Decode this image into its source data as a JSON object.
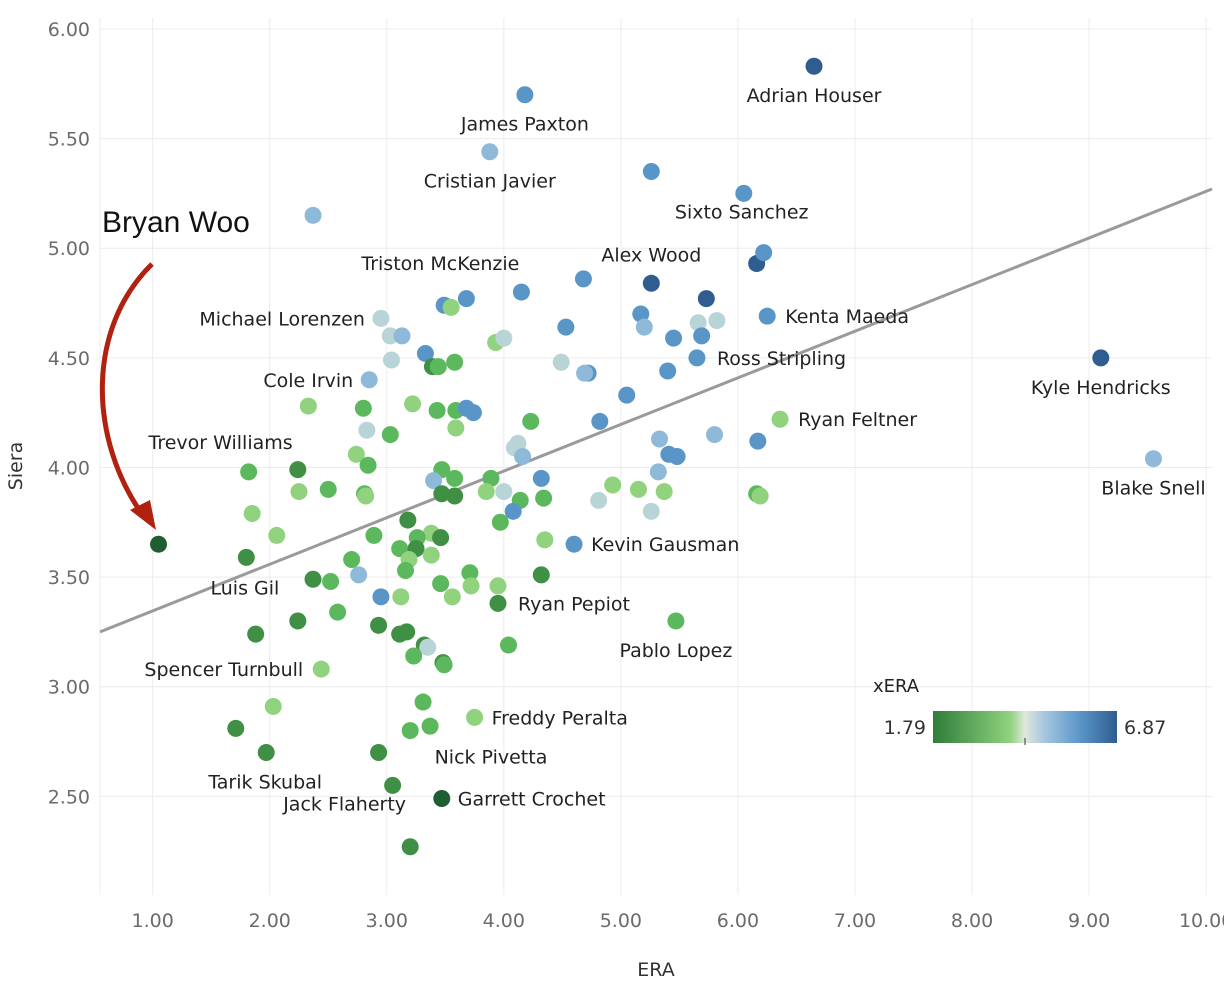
{
  "chart_data": {
    "type": "scatter",
    "xlabel": "ERA",
    "ylabel": "Siera",
    "xlim": [
      0.55,
      10.05
    ],
    "ylim": [
      2.05,
      6.05
    ],
    "x_ticks": [
      "1.00",
      "2.00",
      "3.00",
      "4.00",
      "5.00",
      "6.00",
      "7.00",
      "8.00",
      "9.00",
      "10.00"
    ],
    "y_ticks": [
      "2.50",
      "3.00",
      "3.50",
      "4.00",
      "4.50",
      "5.00",
      "5.50",
      "6.00"
    ],
    "grid": true,
    "trend_line": {
      "x": [
        0.55,
        10.05
      ],
      "y": [
        3.25,
        5.27
      ],
      "color": "#9a9a9a"
    },
    "callout": {
      "text": "Bryan Woo",
      "arrow_color": "#b0220f",
      "target": [
        1.05,
        3.65
      ]
    },
    "color_legend": {
      "title": "xERA",
      "min_label": "1.79",
      "max_label": "6.87",
      "placement": "bottom-right"
    },
    "colors": {
      "dark_green": "#2e7d3a",
      "green": "#5cb85c",
      "light_green": "#90d27e",
      "pale": "#b9d4d6",
      "light_blue": "#8fb9d8",
      "blue": "#5a95c8",
      "dark_blue": "#2f5d8f"
    },
    "labeled_points": [
      {
        "name": "Adrian Houser",
        "x": 6.65,
        "y": 5.83,
        "xera": 5.9
      },
      {
        "name": "James Paxton",
        "x": 4.18,
        "y": 5.7,
        "xera": 5.5
      },
      {
        "name": "Cristian Javier",
        "x": 3.88,
        "y": 5.44,
        "xera": 4.5
      },
      {
        "name": "Sixto Sanchez",
        "x": 6.22,
        "y": 4.98,
        "xera": 5.6
      },
      {
        "name": "Alex Wood",
        "x": 5.26,
        "y": 4.84,
        "xera": 6.3
      },
      {
        "name": "Triston McKenzie",
        "x": 4.15,
        "y": 4.8,
        "xera": 5.3
      },
      {
        "name": "Kenta Maeda",
        "x": 6.25,
        "y": 4.69,
        "xera": 5.1
      },
      {
        "name": "Michael Lorenzen",
        "x": 2.95,
        "y": 4.68,
        "xera": 3.9
      },
      {
        "name": "Ross Stripling",
        "x": 5.65,
        "y": 4.5,
        "xera": 5.6
      },
      {
        "name": "Kyle Hendricks",
        "x": 9.1,
        "y": 4.5,
        "xera": 6.0
      },
      {
        "name": "Cole Irvin",
        "x": 2.85,
        "y": 4.4,
        "xera": 4.7
      },
      {
        "name": "Ryan Feltner",
        "x": 6.36,
        "y": 4.22,
        "xera": 3.4
      },
      {
        "name": "Trevor Williams",
        "x": 1.82,
        "y": 3.98,
        "xera": 2.8
      },
      {
        "name": "Blake Snell",
        "x": 9.55,
        "y": 4.04,
        "xera": 4.9
      },
      {
        "name": "Kevin Gausman",
        "x": 4.6,
        "y": 3.65,
        "xera": 5.5
      },
      {
        "name": "Bryan Woo",
        "x": 1.05,
        "y": 3.65,
        "xera": 1.79
      },
      {
        "name": "Luis Gil",
        "x": 1.8,
        "y": 3.59,
        "xera": 2.5
      },
      {
        "name": "Ryan Pepiot",
        "x": 3.95,
        "y": 3.38,
        "xera": 2.6
      },
      {
        "name": "Pablo Lopez",
        "x": 5.47,
        "y": 3.3,
        "xera": 2.8
      },
      {
        "name": "Spencer Turnbull",
        "x": 2.44,
        "y": 3.08,
        "xera": 3.5
      },
      {
        "name": "Freddy Peralta",
        "x": 3.75,
        "y": 2.86,
        "xera": 3.4
      },
      {
        "name": "Tarik Skubal",
        "x": 1.97,
        "y": 2.7,
        "xera": 2.4
      },
      {
        "name": "Nick Pivetta",
        "x": 2.93,
        "y": 2.7,
        "xera": 2.4
      },
      {
        "name": "Jack Flaherty",
        "x": 3.05,
        "y": 2.55,
        "xera": 2.5
      },
      {
        "name": "Garrett Crochet",
        "x": 3.47,
        "y": 2.49,
        "xera": 2.0
      }
    ],
    "points": [
      {
        "x": 2.37,
        "y": 5.15,
        "xera": 4.5
      },
      {
        "x": 5.26,
        "y": 5.35,
        "xera": 5.4
      },
      {
        "x": 6.05,
        "y": 5.25,
        "xera": 5.2
      },
      {
        "x": 6.16,
        "y": 4.93,
        "xera": 6.6
      },
      {
        "x": 5.73,
        "y": 4.77,
        "xera": 5.9
      },
      {
        "x": 4.68,
        "y": 4.86,
        "xera": 5.2
      },
      {
        "x": 3.49,
        "y": 4.74,
        "xera": 5.3
      },
      {
        "x": 3.68,
        "y": 4.77,
        "xera": 5.2
      },
      {
        "x": 3.55,
        "y": 4.73,
        "xera": 3.4
      },
      {
        "x": 3.03,
        "y": 4.6,
        "xera": 4.3
      },
      {
        "x": 3.13,
        "y": 4.6,
        "xera": 4.8
      },
      {
        "x": 3.93,
        "y": 4.57,
        "xera": 3.5
      },
      {
        "x": 4.0,
        "y": 4.59,
        "xera": 3.9
      },
      {
        "x": 4.53,
        "y": 4.64,
        "xera": 5.3
      },
      {
        "x": 5.17,
        "y": 4.7,
        "xera": 5.2
      },
      {
        "x": 5.2,
        "y": 4.64,
        "xera": 4.9
      },
      {
        "x": 5.45,
        "y": 4.59,
        "xera": 5.2
      },
      {
        "x": 5.66,
        "y": 4.66,
        "xera": 4.0
      },
      {
        "x": 5.82,
        "y": 4.67,
        "xera": 3.9
      },
      {
        "x": 5.69,
        "y": 4.6,
        "xera": 5.2
      },
      {
        "x": 3.04,
        "y": 4.49,
        "xera": 4.2
      },
      {
        "x": 3.33,
        "y": 4.52,
        "xera": 5.2
      },
      {
        "x": 3.39,
        "y": 4.46,
        "xera": 2.4
      },
      {
        "x": 3.44,
        "y": 4.46,
        "xera": 2.9
      },
      {
        "x": 3.58,
        "y": 4.48,
        "xera": 3.1
      },
      {
        "x": 4.49,
        "y": 4.48,
        "xera": 4.0
      },
      {
        "x": 4.72,
        "y": 4.43,
        "xera": 5.5
      },
      {
        "x": 4.69,
        "y": 4.43,
        "xera": 4.8
      },
      {
        "x": 5.4,
        "y": 4.44,
        "xera": 5.6
      },
      {
        "x": 5.05,
        "y": 4.33,
        "xera": 5.1
      },
      {
        "x": 2.33,
        "y": 4.28,
        "xera": 3.4
      },
      {
        "x": 2.8,
        "y": 4.27,
        "xera": 2.8
      },
      {
        "x": 3.22,
        "y": 4.29,
        "xera": 3.6
      },
      {
        "x": 3.43,
        "y": 4.26,
        "xera": 2.9
      },
      {
        "x": 3.59,
        "y": 4.26,
        "xera": 3.0
      },
      {
        "x": 3.68,
        "y": 4.27,
        "xera": 5.3
      },
      {
        "x": 3.74,
        "y": 4.25,
        "xera": 5.3
      },
      {
        "x": 4.23,
        "y": 4.21,
        "xera": 3.1
      },
      {
        "x": 4.82,
        "y": 4.21,
        "xera": 5.0
      },
      {
        "x": 3.59,
        "y": 4.18,
        "xera": 3.3
      },
      {
        "x": 2.83,
        "y": 4.17,
        "xera": 4.2
      },
      {
        "x": 3.03,
        "y": 4.15,
        "xera": 3.0
      },
      {
        "x": 5.33,
        "y": 4.13,
        "xera": 4.9
      },
      {
        "x": 5.8,
        "y": 4.15,
        "xera": 4.4
      },
      {
        "x": 6.17,
        "y": 4.12,
        "xera": 5.6
      },
      {
        "x": 4.09,
        "y": 4.09,
        "xera": 4.3
      },
      {
        "x": 4.12,
        "y": 4.11,
        "xera": 4.0
      },
      {
        "x": 4.16,
        "y": 4.05,
        "xera": 4.8
      },
      {
        "x": 5.41,
        "y": 4.06,
        "xera": 5.5
      },
      {
        "x": 5.48,
        "y": 4.05,
        "xera": 5.7
      },
      {
        "x": 2.74,
        "y": 4.06,
        "xera": 3.6
      },
      {
        "x": 2.84,
        "y": 4.01,
        "xera": 3.0
      },
      {
        "x": 2.24,
        "y": 3.99,
        "xera": 2.6
      },
      {
        "x": 3.47,
        "y": 3.99,
        "xera": 2.8
      },
      {
        "x": 5.32,
        "y": 3.98,
        "xera": 4.5
      },
      {
        "x": 3.4,
        "y": 3.94,
        "xera": 4.4
      },
      {
        "x": 3.58,
        "y": 3.95,
        "xera": 3.0
      },
      {
        "x": 3.89,
        "y": 3.95,
        "xera": 3.1
      },
      {
        "x": 4.32,
        "y": 3.95,
        "xera": 5.6
      },
      {
        "x": 2.25,
        "y": 3.89,
        "xera": 3.3
      },
      {
        "x": 2.5,
        "y": 3.9,
        "xera": 2.8
      },
      {
        "x": 2.81,
        "y": 3.88,
        "xera": 3.1
      },
      {
        "x": 2.82,
        "y": 3.87,
        "xera": 3.7
      },
      {
        "x": 3.47,
        "y": 3.88,
        "xera": 2.6
      },
      {
        "x": 3.58,
        "y": 3.87,
        "xera": 2.5
      },
      {
        "x": 3.85,
        "y": 3.89,
        "xera": 3.6
      },
      {
        "x": 4.0,
        "y": 3.89,
        "xera": 4.1
      },
      {
        "x": 4.14,
        "y": 3.85,
        "xera": 3.0
      },
      {
        "x": 4.34,
        "y": 3.86,
        "xera": 2.9
      },
      {
        "x": 4.81,
        "y": 3.85,
        "xera": 3.8
      },
      {
        "x": 4.93,
        "y": 3.92,
        "xera": 3.5
      },
      {
        "x": 5.15,
        "y": 3.9,
        "xera": 3.6
      },
      {
        "x": 5.37,
        "y": 3.89,
        "xera": 3.4
      },
      {
        "x": 6.16,
        "y": 3.88,
        "xera": 3.1
      },
      {
        "x": 6.19,
        "y": 3.87,
        "xera": 3.6
      },
      {
        "x": 1.85,
        "y": 3.79,
        "xera": 3.3
      },
      {
        "x": 4.08,
        "y": 3.8,
        "xera": 5.3
      },
      {
        "x": 5.26,
        "y": 3.8,
        "xera": 3.8
      },
      {
        "x": 3.18,
        "y": 3.76,
        "xera": 2.7
      },
      {
        "x": 3.97,
        "y": 3.75,
        "xera": 2.8
      },
      {
        "x": 2.06,
        "y": 3.69,
        "xera": 3.4
      },
      {
        "x": 2.89,
        "y": 3.69,
        "xera": 3.0
      },
      {
        "x": 3.38,
        "y": 3.7,
        "xera": 3.2
      },
      {
        "x": 3.26,
        "y": 3.68,
        "xera": 3.0
      },
      {
        "x": 3.46,
        "y": 3.68,
        "xera": 2.7
      },
      {
        "x": 4.35,
        "y": 3.67,
        "xera": 3.5
      },
      {
        "x": 3.11,
        "y": 3.63,
        "xera": 2.8
      },
      {
        "x": 3.25,
        "y": 3.63,
        "xera": 2.6
      },
      {
        "x": 3.38,
        "y": 3.6,
        "xera": 3.3
      },
      {
        "x": 3.19,
        "y": 3.58,
        "xera": 3.5
      },
      {
        "x": 2.7,
        "y": 3.58,
        "xera": 2.8
      },
      {
        "x": 3.16,
        "y": 3.53,
        "xera": 3.0
      },
      {
        "x": 2.76,
        "y": 3.51,
        "xera": 4.7
      },
      {
        "x": 3.71,
        "y": 3.52,
        "xera": 3.1
      },
      {
        "x": 4.32,
        "y": 3.51,
        "xera": 2.4
      },
      {
        "x": 2.37,
        "y": 3.49,
        "xera": 2.6
      },
      {
        "x": 2.52,
        "y": 3.48,
        "xera": 3.0
      },
      {
        "x": 3.46,
        "y": 3.47,
        "xera": 2.8
      },
      {
        "x": 3.72,
        "y": 3.46,
        "xera": 3.2
      },
      {
        "x": 3.95,
        "y": 3.46,
        "xera": 3.4
      },
      {
        "x": 2.95,
        "y": 3.41,
        "xera": 5.1
      },
      {
        "x": 3.12,
        "y": 3.41,
        "xera": 3.4
      },
      {
        "x": 3.56,
        "y": 3.41,
        "xera": 3.2
      },
      {
        "x": 2.58,
        "y": 3.34,
        "xera": 3.0
      },
      {
        "x": 2.24,
        "y": 3.3,
        "xera": 2.5
      },
      {
        "x": 2.93,
        "y": 3.28,
        "xera": 2.7
      },
      {
        "x": 3.11,
        "y": 3.24,
        "xera": 2.6
      },
      {
        "x": 3.17,
        "y": 3.25,
        "xera": 2.3
      },
      {
        "x": 1.88,
        "y": 3.24,
        "xera": 2.6
      },
      {
        "x": 4.04,
        "y": 3.19,
        "xera": 3.1
      },
      {
        "x": 3.32,
        "y": 3.19,
        "xera": 2.7
      },
      {
        "x": 3.35,
        "y": 3.18,
        "xera": 3.8
      },
      {
        "x": 3.23,
        "y": 3.14,
        "xera": 2.8
      },
      {
        "x": 3.48,
        "y": 3.11,
        "xera": 2.7
      },
      {
        "x": 3.49,
        "y": 3.1,
        "xera": 2.9
      },
      {
        "x": 2.03,
        "y": 2.91,
        "xera": 3.2
      },
      {
        "x": 3.31,
        "y": 2.93,
        "xera": 2.8
      },
      {
        "x": 1.71,
        "y": 2.81,
        "xera": 2.6
      },
      {
        "x": 3.2,
        "y": 2.8,
        "xera": 2.9
      },
      {
        "x": 3.37,
        "y": 2.82,
        "xera": 2.8
      },
      {
        "x": 3.2,
        "y": 2.27,
        "xera": 2.4
      }
    ]
  }
}
